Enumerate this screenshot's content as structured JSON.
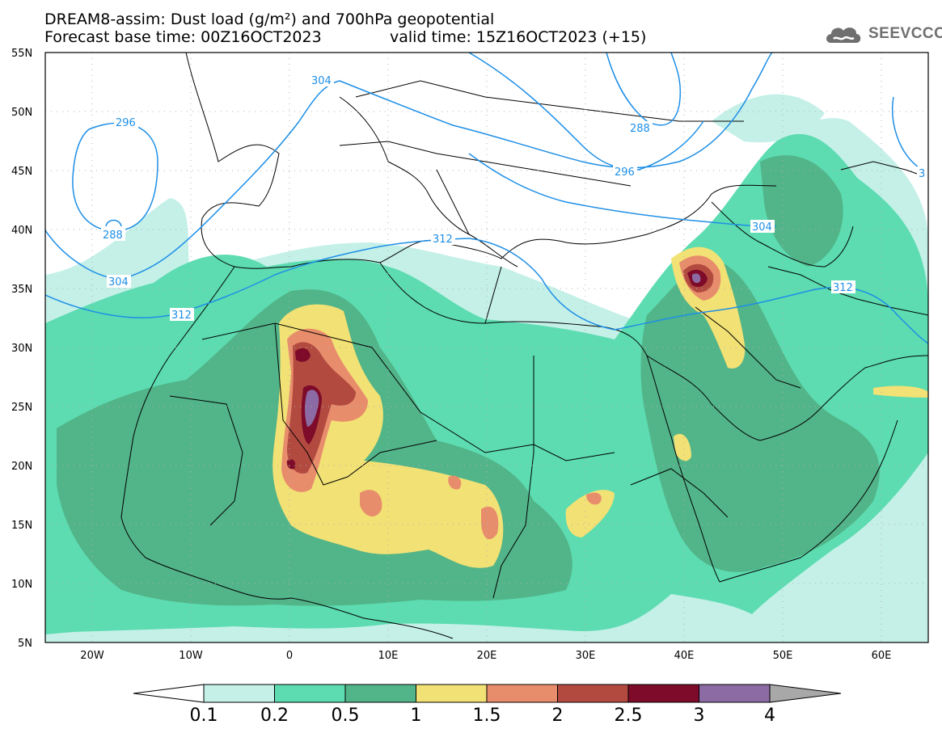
{
  "header": {
    "title": "DREAM8-assim: Dust load (g/m²) and 700hPa geopotential",
    "base_time": "Forecast base time: 00Z16OCT2023",
    "valid_time": "valid time: 15Z16OCT2023 (+15)"
  },
  "logo": {
    "text": "SEEVCCC",
    "icon": "cloud-logo-icon"
  },
  "axes": {
    "lat_labels": [
      "55N",
      "50N",
      "45N",
      "40N",
      "35N",
      "30N",
      "25N",
      "20N",
      "15N",
      "10N",
      "5N"
    ],
    "lon_labels": [
      "20W",
      "10W",
      "0",
      "10E",
      "20E",
      "30E",
      "40E",
      "50E",
      "60E"
    ]
  },
  "contour_labels": [
    "296",
    "288",
    "304",
    "312",
    "304",
    "288",
    "296",
    "304",
    "312",
    "312",
    "3"
  ],
  "colorbar": {
    "colors": [
      "#c4f0e8",
      "#5cdcb0",
      "#52b489",
      "#f2e175",
      "#e88d6c",
      "#b24a40",
      "#7d0b29",
      "#8c6aa3"
    ],
    "labels": [
      "0.1",
      "0.2",
      "0.5",
      "1",
      "1.5",
      "2",
      "2.5",
      "3",
      "4"
    ],
    "under_color": "#ffffff",
    "over_color": "#a8a8a8"
  }
}
